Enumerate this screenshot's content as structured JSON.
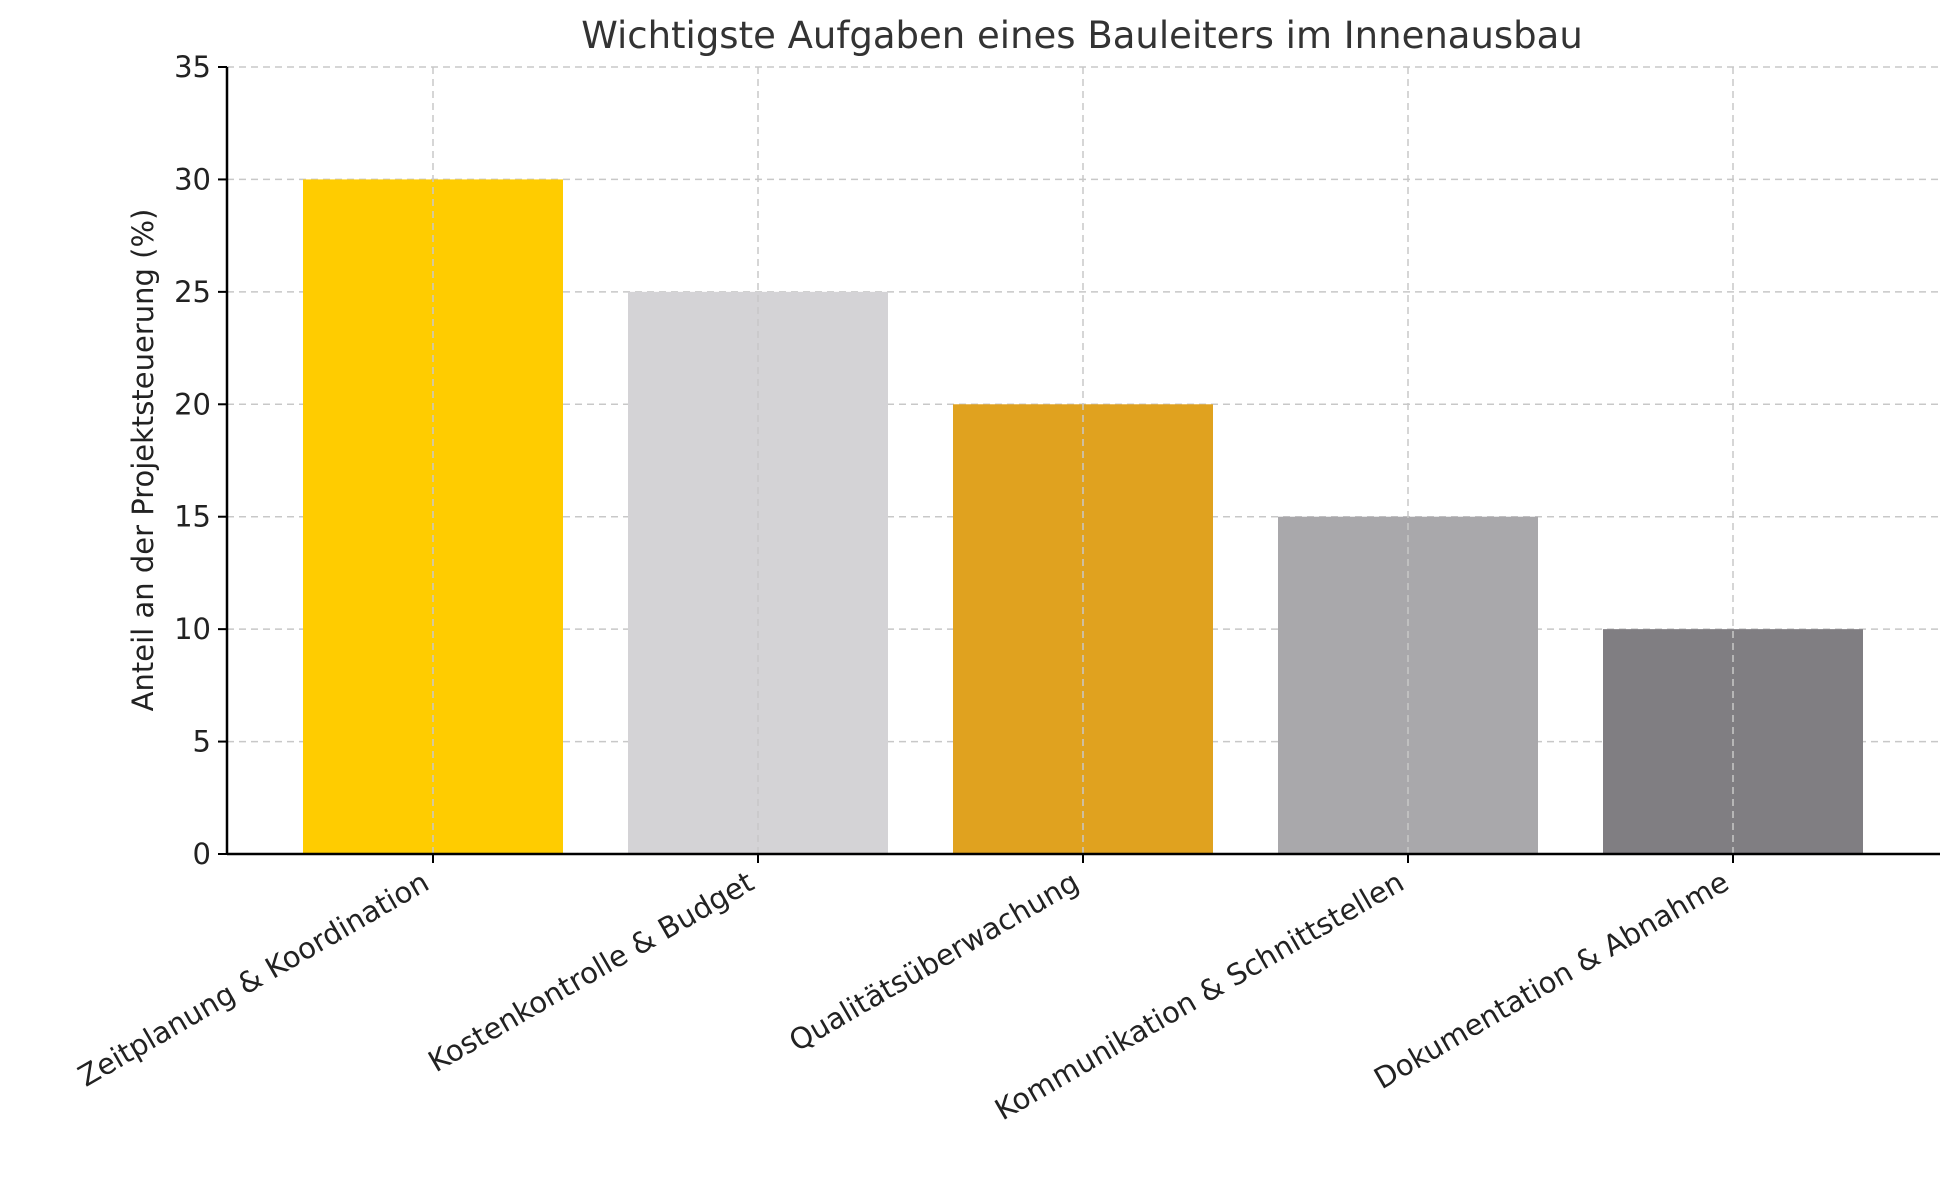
{
  "chart_data": {
    "type": "bar",
    "title": "Wichtigste Aufgaben eines Bauleiters im Innenausbau",
    "xlabel": "",
    "ylabel": "Anteil an der Projektsteuerung (%)",
    "categories": [
      "Zeitplanung & Koordination",
      "Kostenkontrolle & Budget",
      "Qualitätsüberwachung",
      "Kommunikation & Schnittstellen",
      "Dokumentation & Abnahme"
    ],
    "values": [
      30,
      25,
      20,
      15,
      10
    ],
    "colors": [
      "#FFCC00",
      "#D4D3D6",
      "#E0A21F",
      "#A9A8AB",
      "#807E82"
    ],
    "ylim": [
      0,
      35
    ],
    "yticks": [
      0,
      5,
      10,
      15,
      20,
      25,
      30,
      35
    ],
    "grid": true
  }
}
